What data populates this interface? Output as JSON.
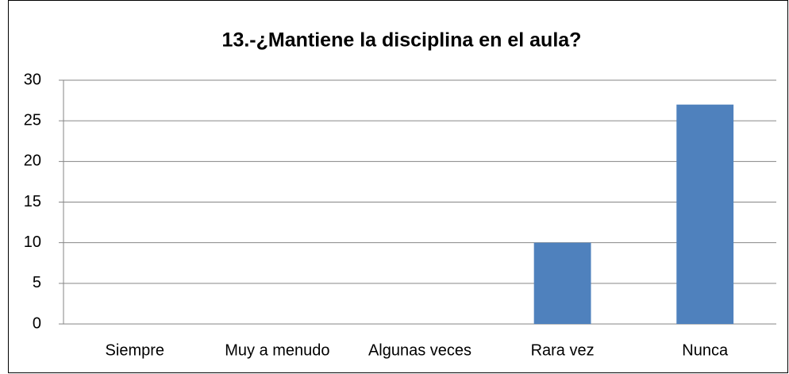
{
  "chart_data": {
    "type": "bar",
    "title": "13.-¿Mantiene la disciplina en el aula?",
    "categories": [
      "Siempre",
      "Muy a menudo",
      "Algunas veces",
      "Rara vez",
      "Nunca"
    ],
    "values": [
      0,
      0,
      0,
      10,
      27
    ],
    "color": "#4f81bd",
    "ylim": [
      0,
      30
    ],
    "yticks": [
      0,
      5,
      10,
      15,
      20,
      25,
      30
    ],
    "grid": true
  }
}
